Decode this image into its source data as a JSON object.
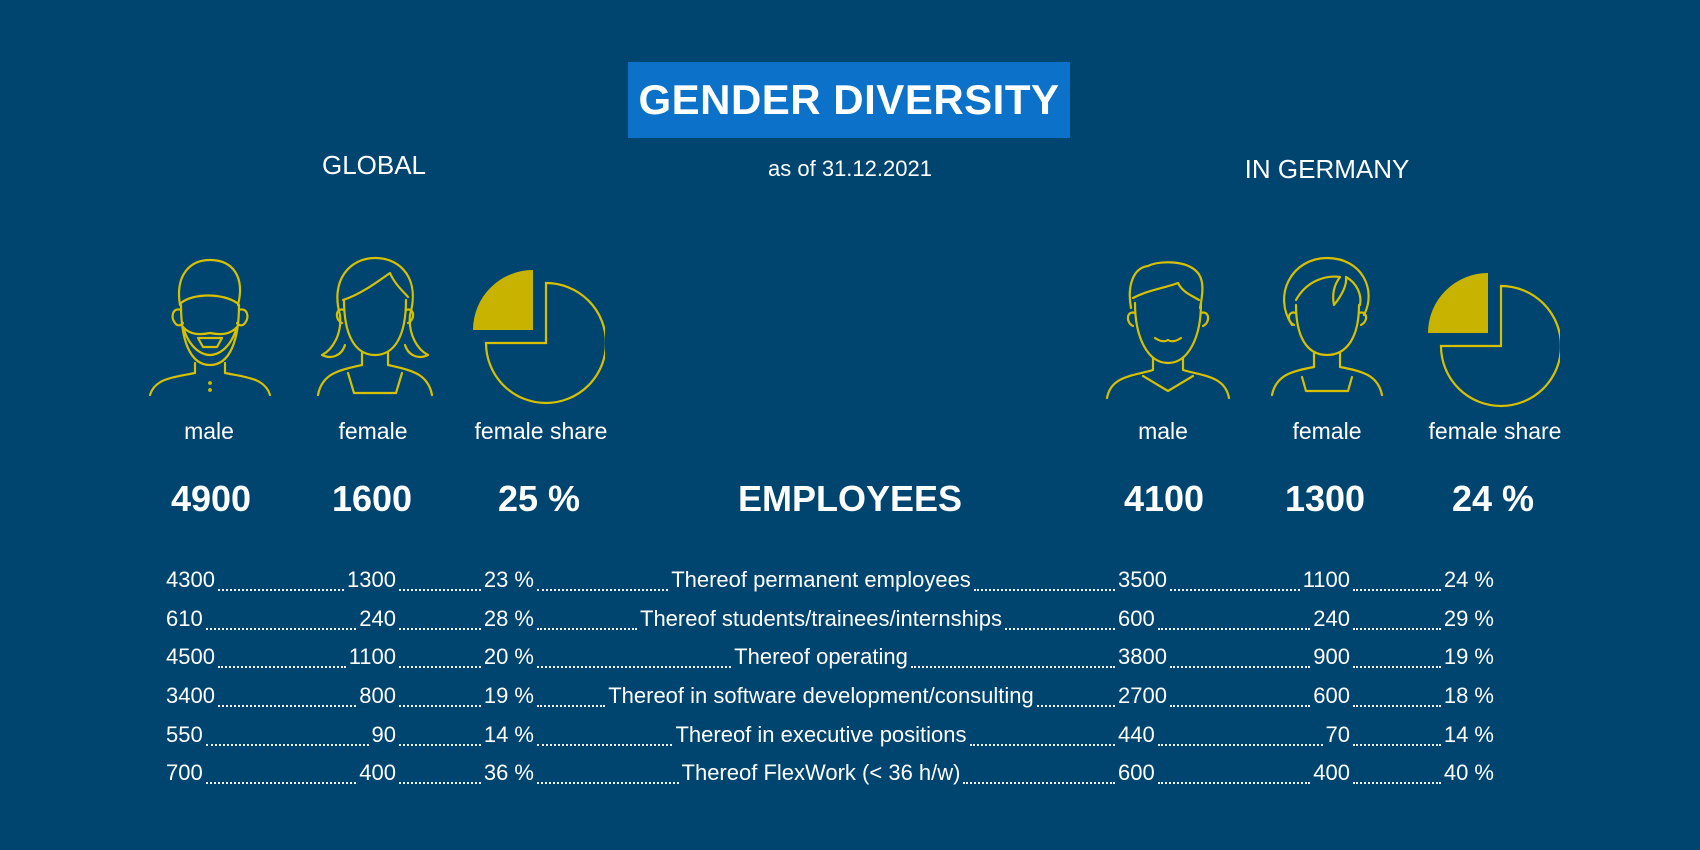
{
  "header": {
    "title": "GENDER DIVERSITY",
    "date": "as of 31.12.2021"
  },
  "global": {
    "heading": "GLOBAL",
    "labels": {
      "male": "male",
      "female": "female",
      "share": "female share"
    },
    "totals": {
      "male": "4900",
      "female": "1600",
      "share": "25 %"
    },
    "share_value": 25
  },
  "germany": {
    "heading": "IN GERMANY",
    "labels": {
      "male": "male",
      "female": "female",
      "share": "female share"
    },
    "totals": {
      "male": "4100",
      "female": "1300",
      "share": "24 %"
    },
    "share_value": 24
  },
  "center": {
    "employees": "EMPLOYEES"
  },
  "colors": {
    "background": "#004470",
    "title_box": "#0b71c9",
    "icon_line": "#d6c000",
    "pie_fill": "#c8b400"
  },
  "icons": [
    "male-icon",
    "female-icon",
    "pie-chart-icon"
  ],
  "rows": [
    {
      "label": "Thereof permanent employees",
      "global": [
        "4300",
        "1300",
        "23 %"
      ],
      "germany": [
        "3500",
        "1100",
        "24 %"
      ]
    },
    {
      "label": "Thereof students/trainees/internships",
      "global": [
        "610",
        "240",
        "28 %"
      ],
      "germany": [
        "600",
        "240",
        "29 %"
      ]
    },
    {
      "label": "Thereof operating",
      "global": [
        "4500",
        "1100",
        "20 %"
      ],
      "germany": [
        "3800",
        "900",
        "19 %"
      ]
    },
    {
      "label": "Thereof in software development/consulting",
      "global": [
        "3400",
        "800",
        "19 %"
      ],
      "germany": [
        "2700",
        "600",
        "18 %"
      ]
    },
    {
      "label": "Thereof in executive positions",
      "global": [
        "550",
        "90",
        "14 %"
      ],
      "germany": [
        "440",
        "70",
        "14 %"
      ]
    },
    {
      "label": "Thereof FlexWork (< 36 h/w)",
      "global": [
        "700",
        "400",
        "36 %"
      ],
      "germany": [
        "600",
        "400",
        "40 %"
      ]
    }
  ]
}
